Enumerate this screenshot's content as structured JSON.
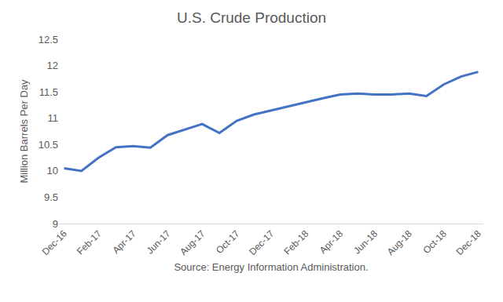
{
  "chart_data": {
    "type": "line",
    "title": "U.S. Crude Production",
    "x_label": "Source: Energy Information Administration.",
    "y_label": "Million Barrels Per Day",
    "categories": [
      "Dec-16",
      null,
      "Feb-17",
      null,
      "Apr-17",
      null,
      "Jun-17",
      null,
      "Aug-17",
      null,
      "Oct-17",
      null,
      "Dec-17",
      null,
      "Feb-18",
      null,
      "Apr-18",
      null,
      "Jun-18",
      null,
      "Aug-18",
      null,
      "Oct-18",
      null,
      "Dec-18"
    ],
    "values": [
      10.05,
      10.0,
      10.25,
      10.45,
      10.47,
      10.44,
      10.68,
      10.78,
      10.89,
      10.72,
      10.95,
      11.07,
      11.15,
      11.22,
      11.3,
      11.38,
      11.45,
      11.47,
      11.45,
      11.45,
      11.47,
      11.42,
      11.64,
      11.79,
      11.88
    ],
    "color": "#4472c4",
    "ylim": [
      9,
      12.5
    ],
    "yticks": [
      9,
      9.5,
      10,
      10.5,
      11,
      11.5,
      12,
      12.5
    ],
    "grid": false
  }
}
